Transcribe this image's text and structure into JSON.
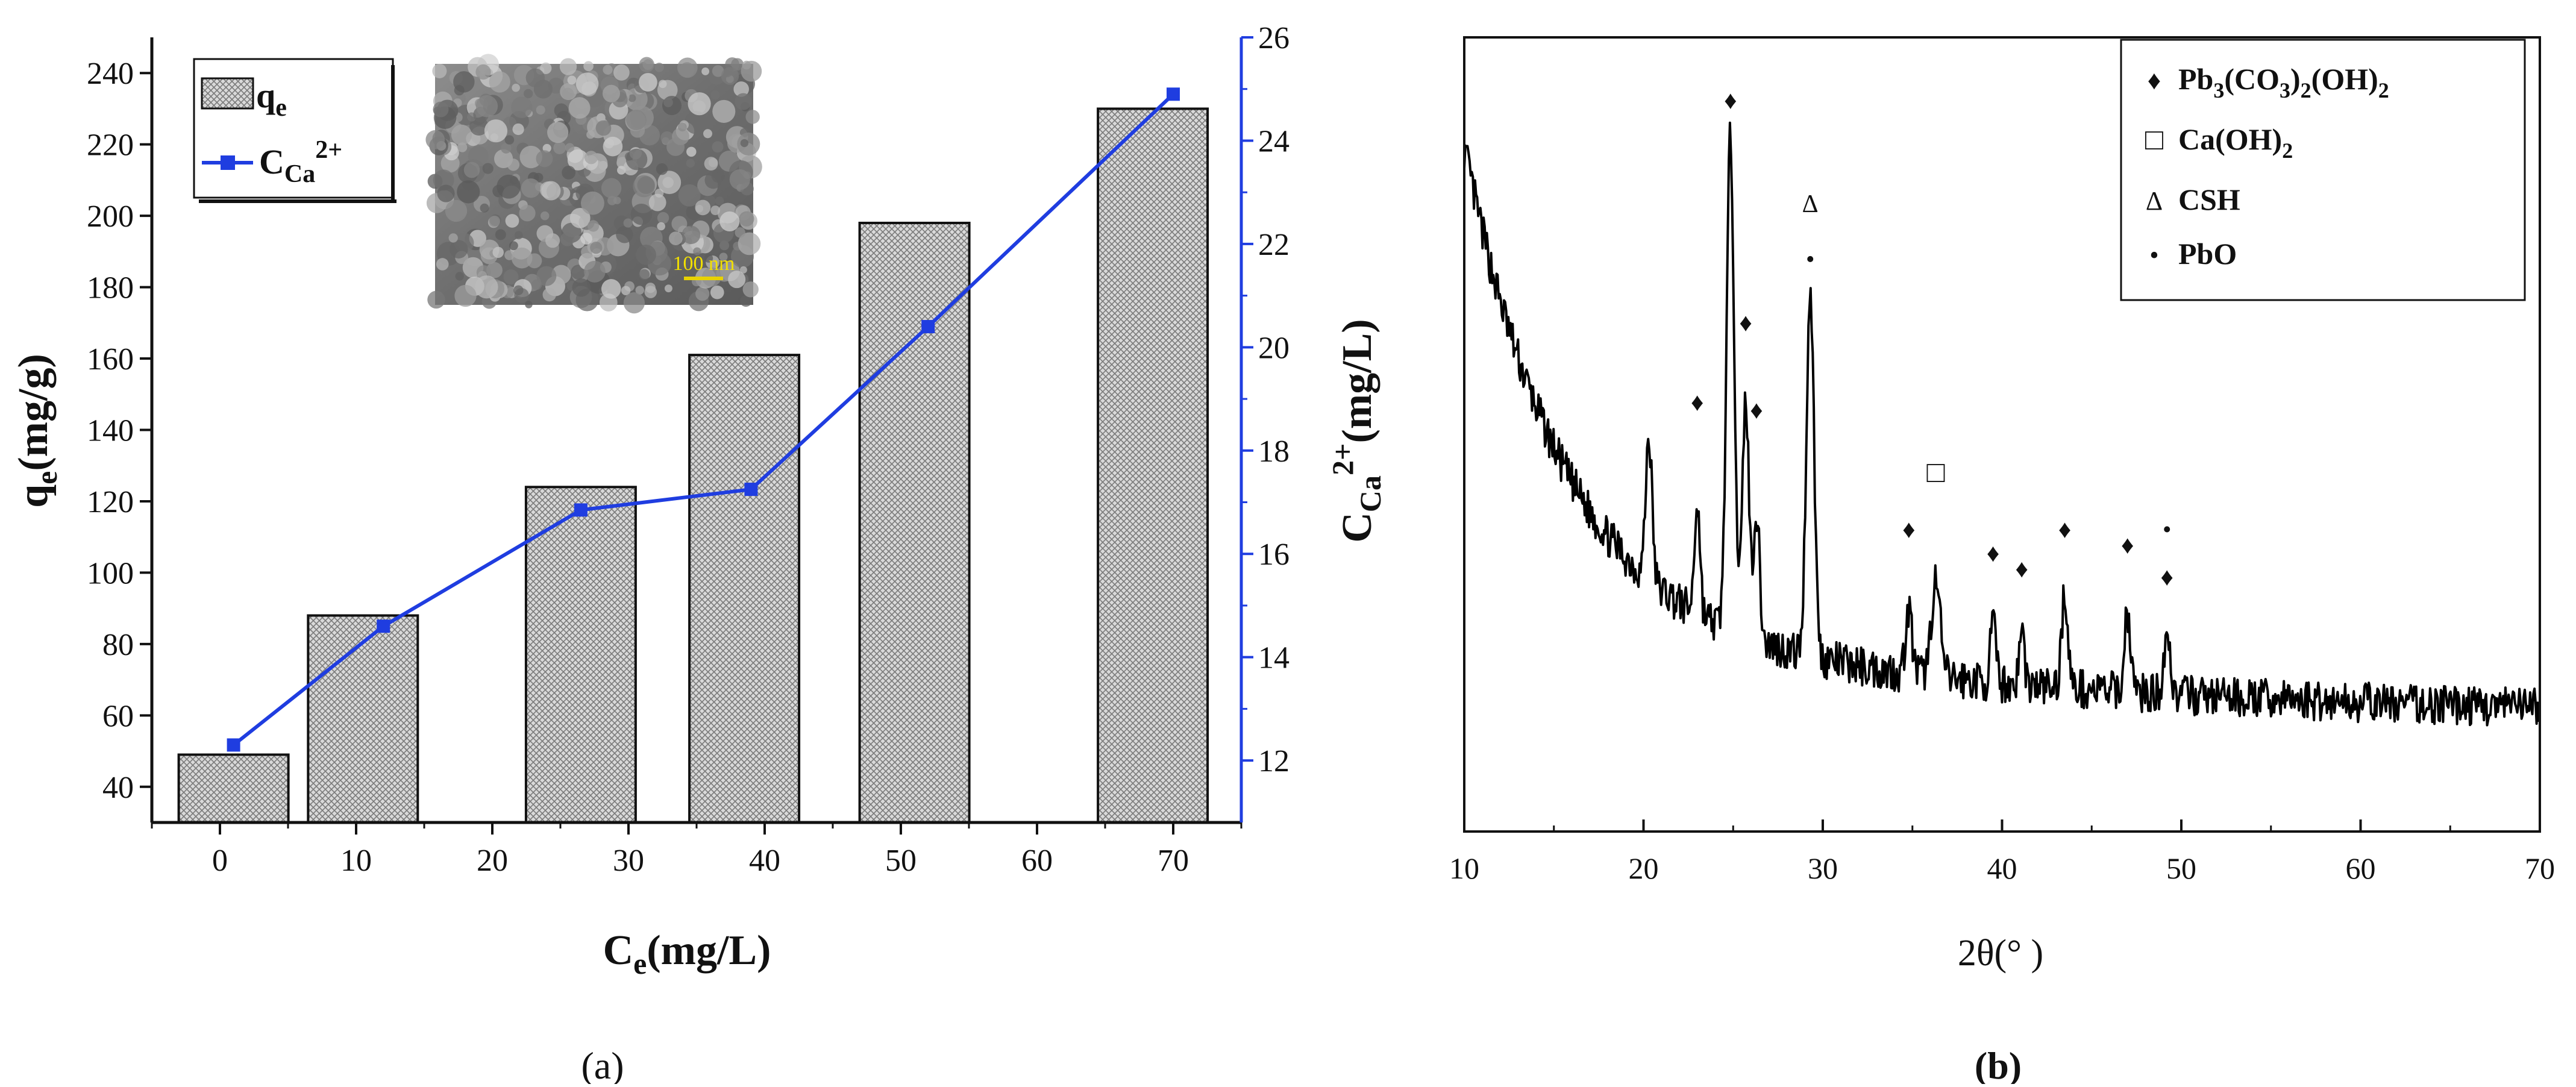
{
  "panel_labels": {
    "a": "(a)",
    "b": "(b)"
  },
  "colors": {
    "bar_fill": "#d9d9d9",
    "bar_stroke": "#111111",
    "line": "#1f3de0",
    "axis_right": "#1f3de0",
    "xrd": "#000000"
  },
  "chart_data": [
    {
      "panel": "a",
      "type": "bar",
      "x": [
        1,
        10.5,
        26.5,
        38.5,
        51,
        68.5
      ],
      "values": [
        49,
        88,
        124,
        161,
        198,
        230
      ],
      "xlabel_main": "C",
      "xlabel_sub": "e",
      "xlabel_tail": "(mg/L)",
      "ylabel_main": "q",
      "ylabel_sub": "e",
      "ylabel_tail": "(mg/g)",
      "y2label_main": "C",
      "y2label_sub": "Ca",
      "y2label_sup": "2+",
      "y2label_tail": "(mg/L)",
      "xlim": [
        -5,
        75
      ],
      "ylim": [
        30,
        250
      ],
      "y2lim": [
        10.8,
        26
      ],
      "xticks": [
        0,
        10,
        20,
        30,
        40,
        50,
        60,
        70
      ],
      "yticks": [
        40,
        60,
        80,
        100,
        120,
        140,
        160,
        180,
        200,
        220,
        240
      ],
      "y2ticks": [
        12,
        14,
        16,
        18,
        20,
        22,
        24,
        26
      ],
      "legend": {
        "bar_label_main": "q",
        "bar_label_sub": "e",
        "line_label_main": "C",
        "line_label_sub": "Ca",
        "line_label_sup": "2+"
      },
      "line_series": {
        "x": [
          1,
          12,
          26.5,
          39,
          52,
          70
        ],
        "values": [
          12.3,
          14.6,
          16.85,
          17.25,
          20.4,
          24.9
        ]
      },
      "inset": {
        "scalebar_label": "100 nm"
      }
    },
    {
      "panel": "b",
      "type": "line",
      "xlabel": "2θ(°  )",
      "xlim": [
        10,
        70
      ],
      "xticks": [
        10,
        20,
        30,
        40,
        50,
        60,
        70
      ],
      "y_ticks_shown": false,
      "legend": [
        {
          "symbol": "♦",
          "label_parts": [
            "Pb",
            "3",
            "(CO",
            "3",
            ")",
            "2",
            "(OH)",
            "2"
          ]
        },
        {
          "symbol": "□",
          "label_parts": [
            "Ca(OH)",
            "2"
          ]
        },
        {
          "symbol": "Δ",
          "label_parts": [
            "CSH"
          ]
        },
        {
          "symbol": "•",
          "label_parts": [
            "PbO"
          ]
        }
      ],
      "peaks": [
        {
          "x": 20.3,
          "h": 0.18,
          "w": 0.25
        },
        {
          "x": 23.0,
          "h": 0.14,
          "w": 0.22
        },
        {
          "x": 24.85,
          "h": 0.62,
          "w": 0.3
        },
        {
          "x": 25.7,
          "h": 0.3,
          "w": 0.25
        },
        {
          "x": 26.3,
          "h": 0.16,
          "w": 0.25
        },
        {
          "x": 29.3,
          "h": 0.46,
          "w": 0.3
        },
        {
          "x": 34.8,
          "h": 0.08,
          "w": 0.25
        },
        {
          "x": 36.3,
          "h": 0.12,
          "w": 0.35
        },
        {
          "x": 39.5,
          "h": 0.08,
          "w": 0.2
        },
        {
          "x": 41.1,
          "h": 0.07,
          "w": 0.2
        },
        {
          "x": 43.5,
          "h": 0.12,
          "w": 0.25
        },
        {
          "x": 47.0,
          "h": 0.1,
          "w": 0.25
        },
        {
          "x": 49.2,
          "h": 0.08,
          "w": 0.25
        }
      ],
      "annotations": [
        {
          "symbol": "♦",
          "x": 23.0,
          "y": 0.53
        },
        {
          "symbol": "♦",
          "x": 24.85,
          "y": 0.91
        },
        {
          "symbol": "♦",
          "x": 25.7,
          "y": 0.63
        },
        {
          "symbol": "♦",
          "x": 26.3,
          "y": 0.52
        },
        {
          "symbol": "Δ",
          "x": 29.3,
          "y": 0.78
        },
        {
          "symbol": "•",
          "x": 29.3,
          "y": 0.71
        },
        {
          "symbol": "□",
          "x": 36.3,
          "y": 0.44
        },
        {
          "symbol": "♦",
          "x": 34.8,
          "y": 0.37
        },
        {
          "symbol": "♦",
          "x": 39.5,
          "y": 0.34
        },
        {
          "symbol": "♦",
          "x": 41.1,
          "y": 0.32
        },
        {
          "symbol": "♦",
          "x": 43.5,
          "y": 0.37
        },
        {
          "symbol": "♦",
          "x": 47.0,
          "y": 0.35
        },
        {
          "symbol": "•",
          "x": 49.2,
          "y": 0.37
        },
        {
          "symbol": "♦",
          "x": 49.2,
          "y": 0.31
        }
      ]
    }
  ]
}
